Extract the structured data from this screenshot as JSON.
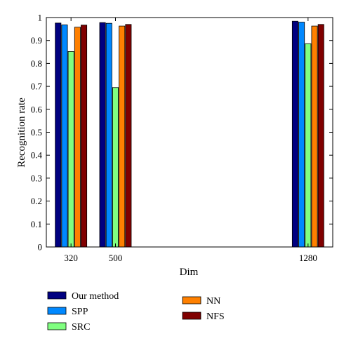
{
  "chart_data": {
    "type": "bar",
    "x_axis_kind": "numeric",
    "categories": [
      "320",
      "500",
      "1280"
    ],
    "x": [
      320,
      500,
      1280
    ],
    "xlim": [
      220,
      1380
    ],
    "xlabel": "Dim",
    "ylabel": "Recognition rate",
    "ylim": [
      0,
      1
    ],
    "yticks": [
      "0",
      "0.1",
      "0.2",
      "0.3",
      "0.4",
      "0.5",
      "0.6",
      "0.7",
      "0.8",
      "0.9",
      "1"
    ],
    "grid": false,
    "legend_position": "below",
    "series": [
      {
        "name": "Our method",
        "color": "#000080",
        "values": [
          0.976,
          0.978,
          0.984
        ]
      },
      {
        "name": "SPP",
        "color": "#0088ff",
        "values": [
          0.968,
          0.975,
          0.98
        ]
      },
      {
        "name": "SRC",
        "color": "#80ff80",
        "values": [
          0.852,
          0.695,
          0.886
        ]
      },
      {
        "name": "NN",
        "color": "#ff8000",
        "values": [
          0.958,
          0.963,
          0.963
        ]
      },
      {
        "name": "NFS",
        "color": "#800000",
        "values": [
          0.967,
          0.97,
          0.97
        ]
      }
    ]
  }
}
